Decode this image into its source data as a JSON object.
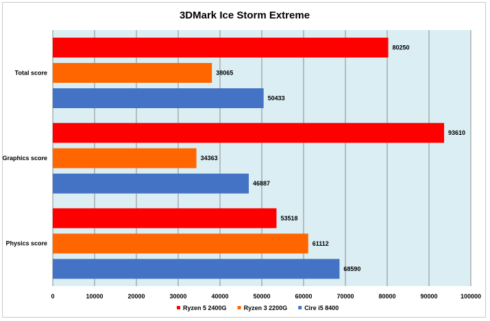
{
  "chart_data": {
    "type": "bar",
    "orientation": "horizontal",
    "title": "3DMark Ice Storm Extreme",
    "categories": [
      "Total score",
      "Graphics score",
      "Physics score"
    ],
    "series": [
      {
        "name": "Ryzen 5 2400G",
        "color": "#ff0000",
        "values": [
          80250,
          93610,
          53518
        ]
      },
      {
        "name": "Ryzen 3 2200G",
        "color": "#ff6600",
        "values": [
          38065,
          34363,
          61112
        ]
      },
      {
        "name": "Cire i5 8400",
        "color": "#4472c4",
        "values": [
          50433,
          46887,
          68590
        ]
      }
    ],
    "xlim": [
      0,
      100000
    ],
    "xticks": [
      "0",
      "10000",
      "20000",
      "30000",
      "40000",
      "50000",
      "60000",
      "70000",
      "80000",
      "90000",
      "100000"
    ],
    "grid": true,
    "legend": "bottom",
    "plot_background": "#daeef3"
  }
}
